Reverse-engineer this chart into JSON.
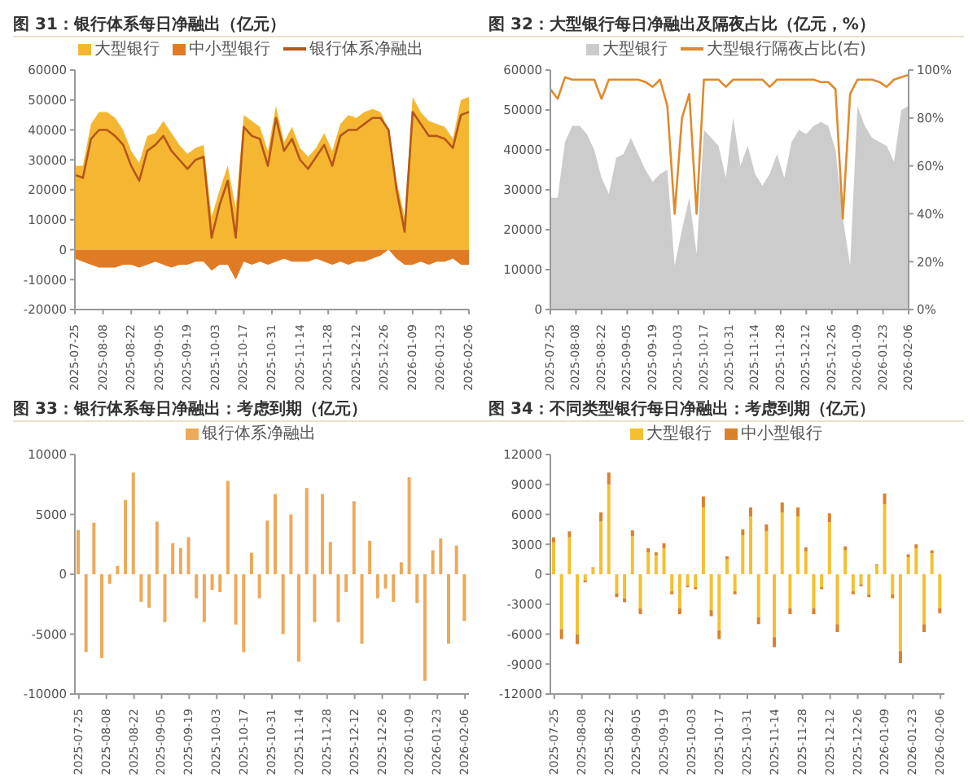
{
  "chart_data": [
    {
      "type": "area",
      "title": "图 31：银行体系每日净融出（亿元）",
      "legend": "top",
      "x": [
        "2025-07-25",
        "2025-07-29",
        "2025-08-02",
        "2025-08-06",
        "2025-08-10",
        "2025-08-14",
        "2025-08-18",
        "2025-08-22",
        "2025-08-26",
        "2025-08-30",
        "2025-09-03",
        "2025-09-07",
        "2025-09-11",
        "2025-09-15",
        "2025-09-19",
        "2025-09-23",
        "2025-09-27",
        "2025-10-01",
        "2025-10-05",
        "2025-10-09",
        "2025-10-13",
        "2025-10-17",
        "2025-10-21",
        "2025-10-25",
        "2025-10-29",
        "2025-11-02",
        "2025-11-06",
        "2025-11-10",
        "2025-11-14",
        "2025-11-18",
        "2025-11-22",
        "2025-11-26",
        "2025-11-30",
        "2025-12-04",
        "2025-12-08",
        "2025-12-12",
        "2025-12-16",
        "2025-12-20",
        "2025-12-24",
        "2025-12-28",
        "2026-01-01",
        "2026-01-05",
        "2026-01-09",
        "2026-01-13",
        "2026-01-17",
        "2026-01-21",
        "2026-01-25",
        "2026-01-29",
        "2026-02-02",
        "2026-02-06"
      ],
      "xlim": [
        "2025-07-25",
        "2026-02-06"
      ],
      "xticks": [
        "2025-07-25",
        "2025-08-08",
        "2025-08-22",
        "2025-09-05",
        "2025-09-19",
        "2025-10-03",
        "2025-10-17",
        "2025-10-31",
        "2025-11-14",
        "2025-11-28",
        "2025-12-12",
        "2025-12-26",
        "2026-01-09",
        "2026-01-23",
        "2026-02-06"
      ],
      "ylim": [
        -20000,
        60000
      ],
      "yticks": [
        -20000,
        -10000,
        0,
        10000,
        20000,
        30000,
        40000,
        50000,
        60000
      ],
      "series": [
        {
          "name": "大型银行",
          "color": "#f5b731",
          "values": [
            28000,
            28000,
            42000,
            46000,
            46000,
            44000,
            40000,
            33000,
            29000,
            38000,
            39000,
            43000,
            39000,
            35000,
            32000,
            34000,
            35000,
            11000,
            20000,
            28000,
            14000,
            45000,
            43000,
            41000,
            33000,
            48000,
            36000,
            41000,
            34000,
            31000,
            34000,
            39000,
            33000,
            42000,
            45000,
            44000,
            46000,
            47000,
            46000,
            40000,
            23000,
            11000,
            51000,
            46000,
            43000,
            42000,
            41000,
            37000,
            50000,
            51000
          ]
        },
        {
          "name": "中小型银行",
          "color": "#e07b24",
          "values": [
            -3000,
            -4000,
            -5000,
            -6000,
            -6000,
            -6000,
            -5000,
            -5000,
            -6000,
            -5000,
            -4000,
            -5000,
            -6000,
            -5000,
            -5000,
            -4000,
            -4000,
            -7000,
            -5000,
            -5000,
            -10000,
            -4000,
            -5000,
            -4000,
            -5000,
            -4000,
            -3000,
            -4000,
            -4000,
            -4000,
            -3000,
            -4000,
            -5000,
            -4000,
            -5000,
            -4000,
            -4000,
            -3000,
            -2000,
            0,
            -3000,
            -5000,
            -5000,
            -4000,
            -5000,
            -4000,
            -4000,
            -3000,
            -5000,
            -5000
          ]
        },
        {
          "name": "银行体系净融出",
          "type": "line",
          "color": "#b5561a",
          "values": [
            25000,
            24000,
            37000,
            40000,
            40000,
            38000,
            35000,
            28000,
            23000,
            33000,
            35000,
            38000,
            33000,
            30000,
            27000,
            30000,
            31000,
            4000,
            15000,
            23000,
            4000,
            41000,
            38000,
            37000,
            28000,
            44000,
            33000,
            37000,
            30000,
            27000,
            31000,
            35000,
            28000,
            38000,
            40000,
            40000,
            42000,
            44000,
            44000,
            40000,
            20000,
            6000,
            46000,
            42000,
            38000,
            38000,
            37000,
            34000,
            45000,
            46000
          ]
        }
      ]
    },
    {
      "type": "area",
      "title": "图 32：大型银行每日净融出及隔夜占比（亿元，%）",
      "legend": "top",
      "x": [
        "2025-07-25",
        "2025-07-29",
        "2025-08-02",
        "2025-08-06",
        "2025-08-10",
        "2025-08-14",
        "2025-08-18",
        "2025-08-22",
        "2025-08-26",
        "2025-08-30",
        "2025-09-03",
        "2025-09-07",
        "2025-09-11",
        "2025-09-15",
        "2025-09-19",
        "2025-09-23",
        "2025-09-27",
        "2025-10-01",
        "2025-10-05",
        "2025-10-09",
        "2025-10-13",
        "2025-10-17",
        "2025-10-21",
        "2025-10-25",
        "2025-10-29",
        "2025-11-02",
        "2025-11-06",
        "2025-11-10",
        "2025-11-14",
        "2025-11-18",
        "2025-11-22",
        "2025-11-26",
        "2025-11-30",
        "2025-12-04",
        "2025-12-08",
        "2025-12-12",
        "2025-12-16",
        "2025-12-20",
        "2025-12-24",
        "2025-12-28",
        "2026-01-01",
        "2026-01-05",
        "2026-01-09",
        "2026-01-13",
        "2026-01-17",
        "2026-01-21",
        "2026-01-25",
        "2026-01-29",
        "2026-02-02",
        "2026-02-06"
      ],
      "xlim": [
        "2025-07-25",
        "2026-02-06"
      ],
      "xticks": [
        "2025-07-25",
        "2025-08-08",
        "2025-08-22",
        "2025-09-05",
        "2025-09-19",
        "2025-10-03",
        "2025-10-17",
        "2025-10-31",
        "2025-11-14",
        "2025-11-28",
        "2025-12-12",
        "2025-12-26",
        "2026-01-09",
        "2026-01-23",
        "2026-02-06"
      ],
      "ylim": [
        0,
        60000
      ],
      "yticks": [
        0,
        10000,
        20000,
        30000,
        40000,
        50000,
        60000
      ],
      "y2lim": [
        0,
        100
      ],
      "y2ticks": [
        {
          "value": 0,
          "label": "0%"
        },
        {
          "value": 20,
          "label": "20%"
        },
        {
          "value": 40,
          "label": "40%"
        },
        {
          "value": 60,
          "label": "60%"
        },
        {
          "value": 80,
          "label": "80%"
        },
        {
          "value": 100,
          "label": "100%"
        }
      ],
      "series": [
        {
          "name": "大型银行",
          "color": "#cccccc",
          "values": [
            28000,
            28000,
            42000,
            46000,
            46000,
            44000,
            40000,
            33000,
            29000,
            38000,
            39000,
            43000,
            39000,
            35000,
            32000,
            34000,
            35000,
            11000,
            20000,
            28000,
            14000,
            45000,
            43000,
            41000,
            33000,
            48000,
            36000,
            41000,
            34000,
            31000,
            34000,
            39000,
            33000,
            42000,
            45000,
            44000,
            46000,
            47000,
            46000,
            40000,
            23000,
            11000,
            51000,
            46000,
            43000,
            42000,
            41000,
            37000,
            50000,
            51000
          ]
        },
        {
          "name": "大型银行隔夜占比(右)",
          "type": "line",
          "axis": "y2",
          "color": "#e08a2c",
          "values": [
            92,
            88,
            97,
            96,
            96,
            96,
            96,
            88,
            96,
            96,
            96,
            96,
            96,
            95,
            93,
            96,
            85,
            40,
            80,
            90,
            40,
            96,
            96,
            96,
            93,
            96,
            96,
            96,
            96,
            96,
            93,
            96,
            96,
            96,
            96,
            96,
            96,
            95,
            95,
            92,
            38,
            90,
            96,
            96,
            96,
            95,
            93,
            96,
            97,
            98
          ]
        }
      ]
    },
    {
      "type": "bar",
      "title": "图 33：银行体系每日净融出：考虑到期（亿元）",
      "legend": "top",
      "x": [
        "2025-07-25",
        "2025-07-29",
        "2025-08-02",
        "2025-08-06",
        "2025-08-10",
        "2025-08-14",
        "2025-08-18",
        "2025-08-22",
        "2025-08-26",
        "2025-08-30",
        "2025-09-03",
        "2025-09-07",
        "2025-09-11",
        "2025-09-15",
        "2025-09-19",
        "2025-09-23",
        "2025-09-27",
        "2025-10-01",
        "2025-10-05",
        "2025-10-09",
        "2025-10-13",
        "2025-10-17",
        "2025-10-21",
        "2025-10-25",
        "2025-10-29",
        "2025-11-02",
        "2025-11-06",
        "2025-11-10",
        "2025-11-14",
        "2025-11-18",
        "2025-11-22",
        "2025-11-26",
        "2025-11-30",
        "2025-12-04",
        "2025-12-08",
        "2025-12-12",
        "2025-12-16",
        "2025-12-20",
        "2025-12-24",
        "2025-12-28",
        "2026-01-01",
        "2026-01-05",
        "2026-01-09",
        "2026-01-13",
        "2026-01-17",
        "2026-01-21",
        "2026-01-25",
        "2026-01-29",
        "2026-02-02",
        "2026-02-06"
      ],
      "xlim": [
        "2025-07-23",
        "2026-02-08"
      ],
      "xticks": [
        "2025-07-25",
        "2025-08-08",
        "2025-08-22",
        "2025-09-05",
        "2025-09-19",
        "2025-10-03",
        "2025-10-17",
        "2025-10-31",
        "2025-11-14",
        "2025-11-28",
        "2025-12-12",
        "2025-12-26",
        "2026-01-09",
        "2026-01-23",
        "2026-02-06"
      ],
      "ylim": [
        -10000,
        10000
      ],
      "yticks": [
        -10000,
        -5000,
        0,
        5000,
        10000
      ],
      "series": [
        {
          "name": "银行体系净融出",
          "color": "#eda95a",
          "values": [
            3700,
            -6500,
            4300,
            -7000,
            -800,
            700,
            6200,
            8500,
            -2300,
            -2800,
            4400,
            -4000,
            2600,
            2200,
            3100,
            -2000,
            -4000,
            -1300,
            -1500,
            7800,
            -4200,
            -6500,
            1800,
            -2000,
            4500,
            6700,
            -5000,
            5000,
            -7300,
            7200,
            -4000,
            6700,
            2700,
            -4000,
            -1500,
            6100,
            -5800,
            2800,
            -2000,
            -1200,
            -2300,
            1000,
            8100,
            -2400,
            -8900,
            2000,
            3000,
            -5800,
            2400,
            -3900
          ]
        }
      ]
    },
    {
      "type": "bar",
      "title": "图 34：不同类型银行每日净融出：考虑到期（亿元）",
      "legend": "top",
      "stacked": true,
      "x": [
        "2025-07-25",
        "2025-07-29",
        "2025-08-02",
        "2025-08-06",
        "2025-08-10",
        "2025-08-14",
        "2025-08-18",
        "2025-08-22",
        "2025-08-26",
        "2025-08-30",
        "2025-09-03",
        "2025-09-07",
        "2025-09-11",
        "2025-09-15",
        "2025-09-19",
        "2025-09-23",
        "2025-09-27",
        "2025-10-01",
        "2025-10-05",
        "2025-10-09",
        "2025-10-13",
        "2025-10-17",
        "2025-10-21",
        "2025-10-25",
        "2025-10-29",
        "2025-11-02",
        "2025-11-06",
        "2025-11-10",
        "2025-11-14",
        "2025-11-18",
        "2025-11-22",
        "2025-11-26",
        "2025-11-30",
        "2025-12-04",
        "2025-12-08",
        "2025-12-12",
        "2025-12-16",
        "2025-12-20",
        "2025-12-24",
        "2025-12-28",
        "2026-01-01",
        "2026-01-05",
        "2026-01-09",
        "2026-01-13",
        "2026-01-17",
        "2026-01-21",
        "2026-01-25",
        "2026-01-29",
        "2026-02-02",
        "2026-02-06"
      ],
      "xlim": [
        "2025-07-23",
        "2026-02-08"
      ],
      "xticks": [
        "2025-07-25",
        "2025-08-08",
        "2025-08-22",
        "2025-09-05",
        "2025-09-19",
        "2025-10-03",
        "2025-10-17",
        "2025-10-31",
        "2025-11-14",
        "2025-11-28",
        "2025-12-12",
        "2025-12-26",
        "2026-01-09",
        "2026-01-23",
        "2026-02-06"
      ],
      "ylim": [
        -12000,
        12000
      ],
      "yticks": [
        -12000,
        -9000,
        -6000,
        -3000,
        0,
        3000,
        6000,
        9000,
        12000
      ],
      "series": [
        {
          "name": "大型银行",
          "color": "#f5c030",
          "values": [
            3200,
            -5500,
            3700,
            -6000,
            -600,
            600,
            5300,
            9000,
            -1900,
            -2400,
            3800,
            -3400,
            2200,
            1900,
            2600,
            -1700,
            -3400,
            -1100,
            -1300,
            6700,
            -3600,
            -5600,
            1500,
            -1700,
            3900,
            5800,
            -4300,
            4300,
            -6300,
            6200,
            -3400,
            5800,
            2300,
            -3400,
            -1300,
            5200,
            -5000,
            2400,
            -1700,
            -1000,
            -2000,
            900,
            7000,
            -2000,
            -7700,
            1700,
            2600,
            -5000,
            2100,
            -3400
          ]
        },
        {
          "name": "中小型银行",
          "color": "#d9822b",
          "values": [
            500,
            -1000,
            600,
            -1000,
            -200,
            100,
            900,
            1200,
            -400,
            -400,
            600,
            -600,
            400,
            300,
            500,
            -300,
            -600,
            -200,
            -200,
            1100,
            -600,
            -900,
            300,
            -300,
            600,
            900,
            -700,
            700,
            -1000,
            1000,
            -600,
            900,
            400,
            -600,
            -200,
            900,
            -800,
            400,
            -300,
            -200,
            -300,
            100,
            1100,
            -400,
            -1200,
            300,
            400,
            -800,
            300,
            -500
          ]
        }
      ]
    }
  ]
}
